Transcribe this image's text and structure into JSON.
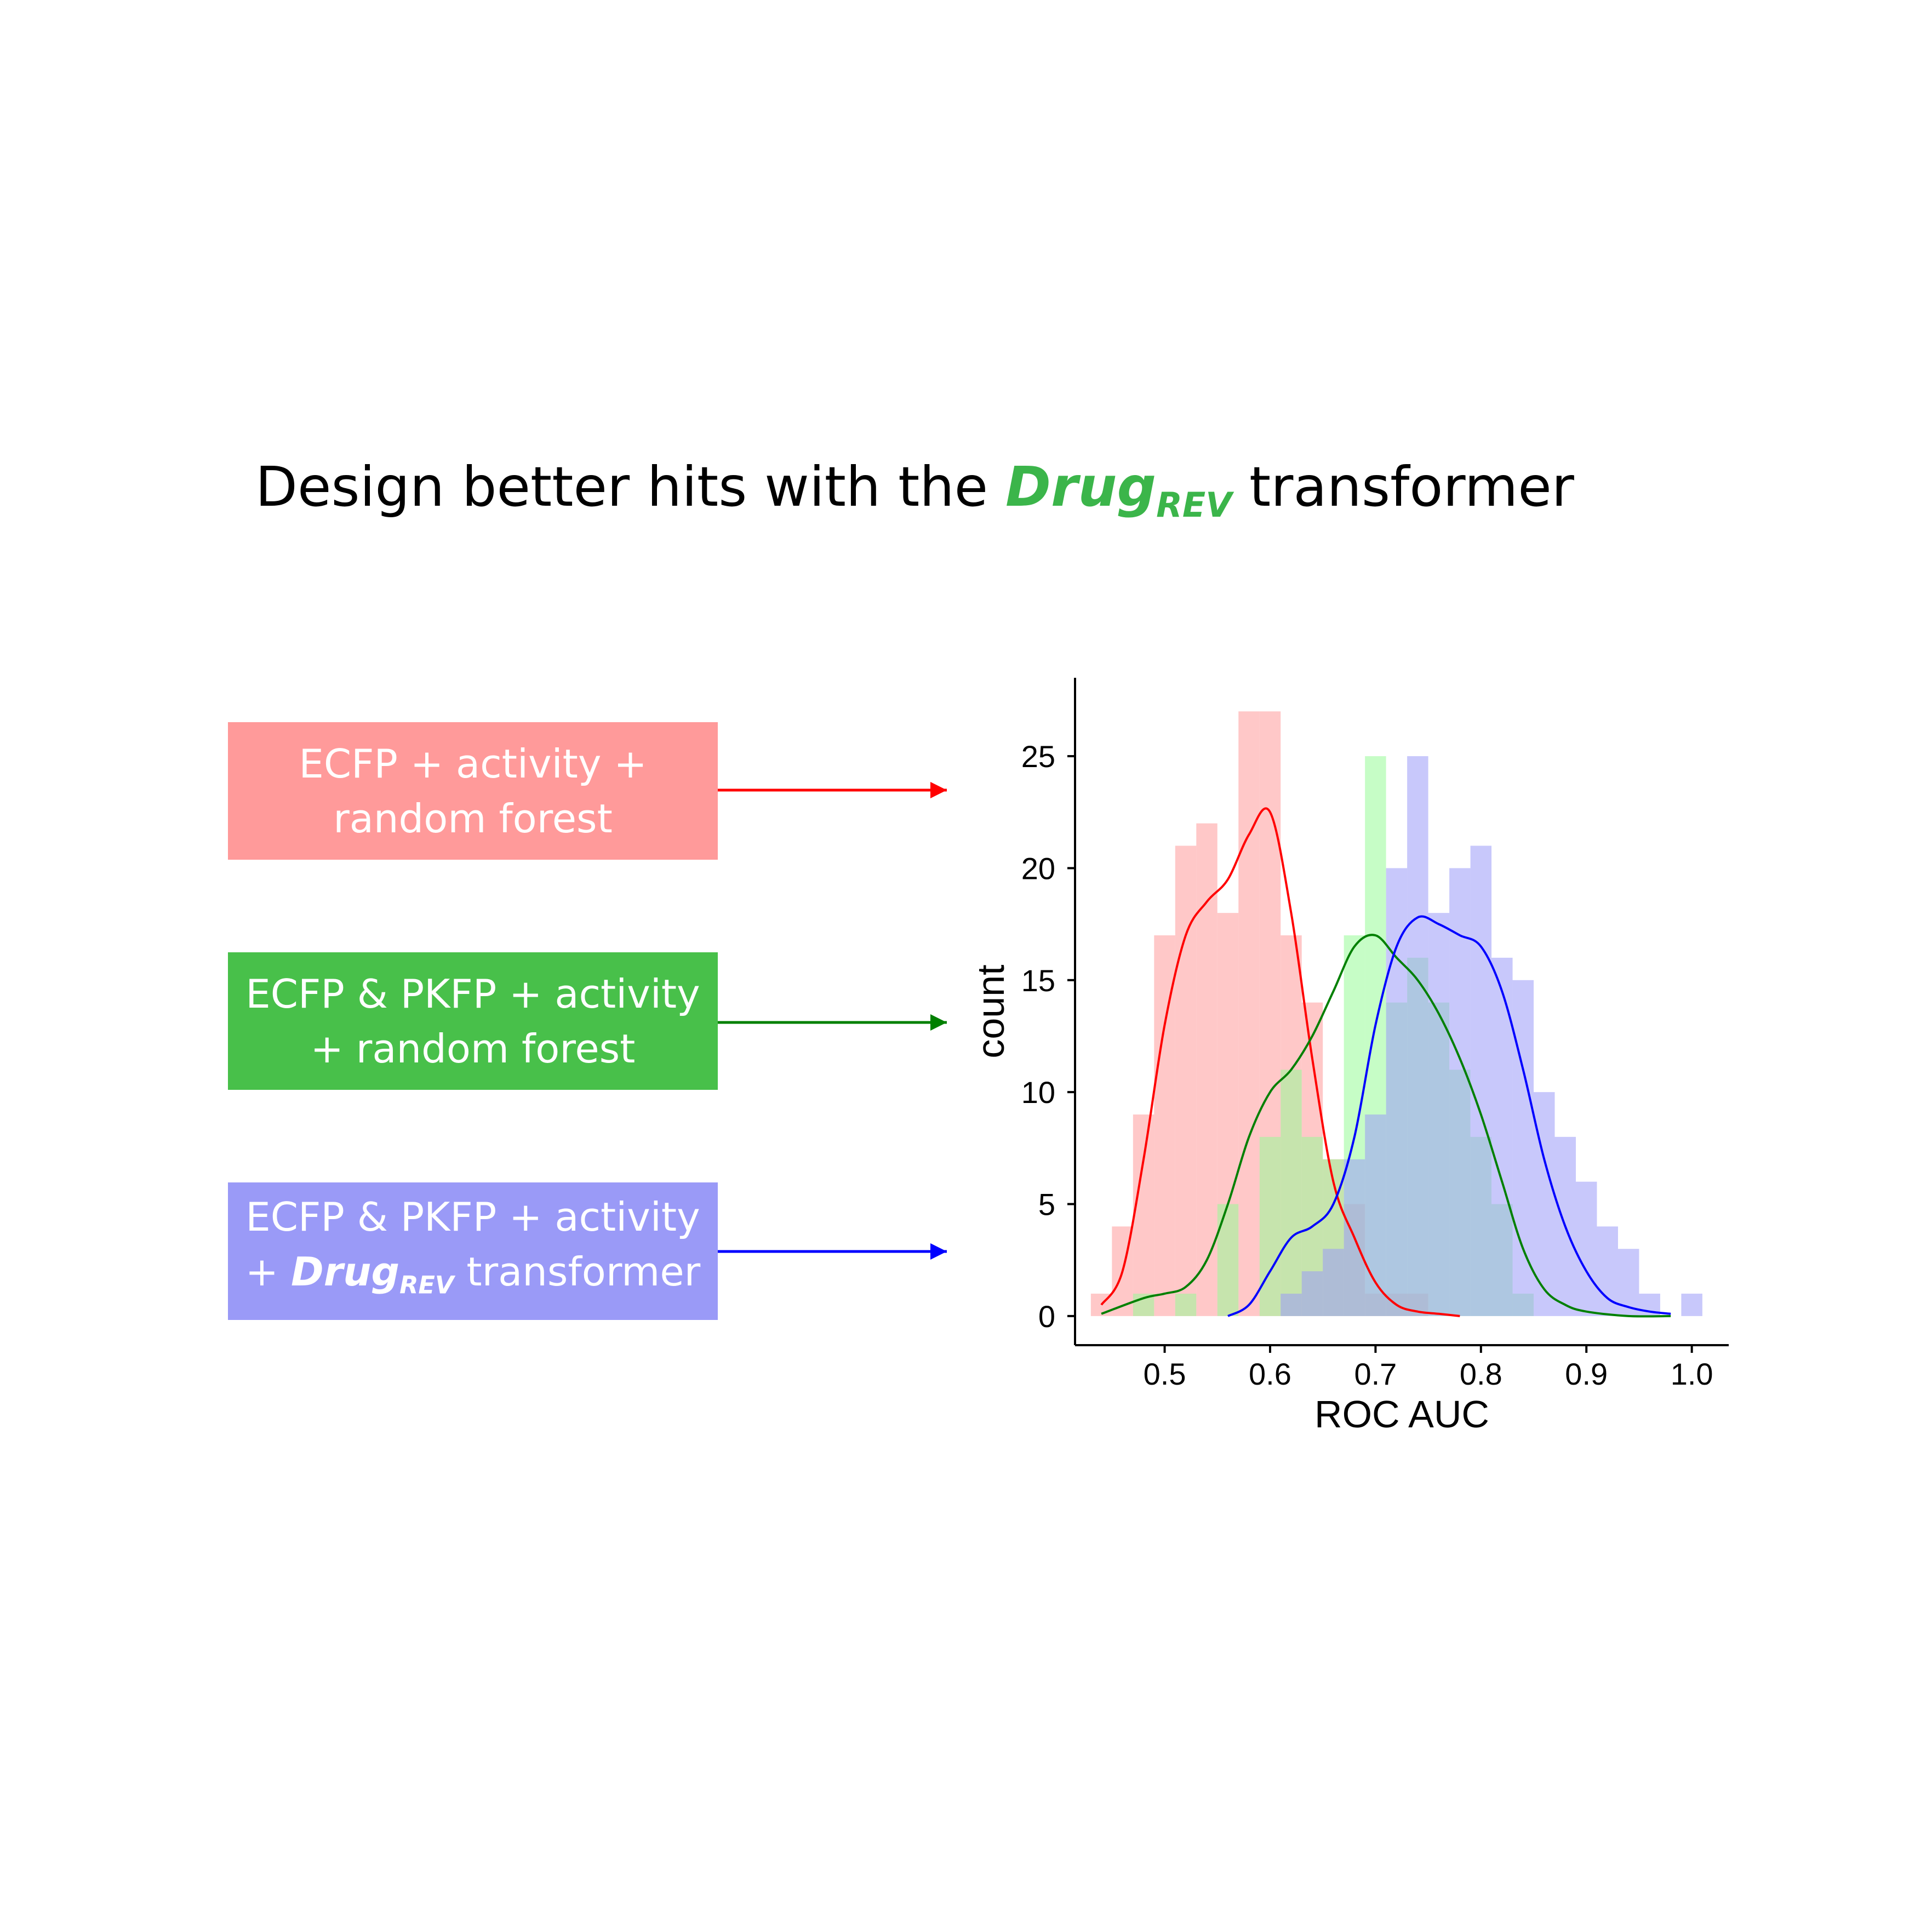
{
  "title": {
    "prefix": "Design better hits with the",
    "brand": "Drug",
    "brand_sub": "REV",
    "suffix": "transformer"
  },
  "boxes": [
    {
      "line1": "ECFP + activity +",
      "line2": "random forest",
      "color": "#ff9a9a",
      "arrow_color": "#ff0000"
    },
    {
      "line1": "ECFP & PKFP + activity",
      "line2": "+ random forest",
      "color": "#48c04a",
      "arrow_color": "#008000"
    },
    {
      "line1": "ECFP & PKFP + activity",
      "line2_prefix": "+",
      "line2_brand": "Drug",
      "line2_brand_sub": "REV",
      "line2_suffix": "transformer",
      "color": "#9a9af7",
      "arrow_color": "#0000ff"
    }
  ],
  "chart_data": {
    "type": "histogram",
    "xlabel": "ROC AUC",
    "ylabel": "count",
    "xlim": [
      0.415,
      1.035
    ],
    "ylim": [
      -1.3,
      28.5
    ],
    "xticks": [
      "0.5",
      "0.6",
      "0.7",
      "0.8",
      "0.9",
      "1.0"
    ],
    "yticks": [
      "0",
      "5",
      "10",
      "15",
      "20",
      "25"
    ],
    "bin_width": 0.02,
    "grid": false,
    "series": [
      {
        "color": "#ff9a9a",
        "line_color": "#ff0000",
        "x": [
          0.44,
          0.46,
          0.48,
          0.5,
          0.52,
          0.54,
          0.56,
          0.58,
          0.6,
          0.62,
          0.64,
          0.66,
          0.68,
          0.7,
          0.72,
          0.74
        ],
        "counts": [
          1,
          4,
          9,
          17,
          21,
          22,
          18,
          27,
          27,
          17,
          14,
          7,
          5,
          1,
          1,
          1
        ],
        "kde_x": [
          0.44,
          0.46,
          0.48,
          0.5,
          0.52,
          0.54,
          0.56,
          0.58,
          0.6,
          0.62,
          0.64,
          0.66,
          0.68,
          0.7,
          0.72,
          0.74,
          0.76,
          0.78
        ],
        "kde_y": [
          0.5,
          2,
          7,
          13,
          17,
          18.5,
          19.5,
          21.5,
          22.5,
          18,
          11.5,
          6,
          3.5,
          1.5,
          0.5,
          0.2,
          0.1,
          0
        ]
      },
      {
        "color": "#98fb98",
        "line_color": "#008000",
        "x": [
          0.48,
          0.52,
          0.56,
          0.6,
          0.62,
          0.64,
          0.66,
          0.68,
          0.7,
          0.72,
          0.74,
          0.76,
          0.78,
          0.8,
          0.82,
          0.84
        ],
        "counts": [
          1,
          1,
          5,
          8,
          11,
          8,
          7,
          17,
          25,
          14,
          16,
          14,
          11,
          8,
          5,
          1
        ],
        "kde_x": [
          0.44,
          0.48,
          0.5,
          0.52,
          0.54,
          0.56,
          0.58,
          0.6,
          0.62,
          0.64,
          0.66,
          0.68,
          0.7,
          0.72,
          0.74,
          0.76,
          0.78,
          0.8,
          0.82,
          0.84,
          0.86,
          0.88,
          0.9,
          0.94,
          0.98
        ],
        "kde_y": [
          0.1,
          0.8,
          1,
          1.3,
          2.5,
          5,
          8,
          10,
          11,
          12.5,
          14.5,
          16.5,
          17,
          16,
          15,
          13.5,
          11.5,
          9,
          6,
          3,
          1.2,
          0.5,
          0.2,
          0,
          0
        ]
      },
      {
        "color": "#9a9af7",
        "line_color": "#0000ff",
        "x": [
          0.62,
          0.64,
          0.66,
          0.68,
          0.7,
          0.72,
          0.74,
          0.76,
          0.78,
          0.8,
          0.82,
          0.84,
          0.86,
          0.88,
          0.9,
          0.92,
          0.94,
          0.96,
          0.98,
          1.0
        ],
        "counts": [
          1,
          2,
          3,
          7,
          9,
          20,
          25,
          18,
          20,
          21,
          16,
          15,
          10,
          8,
          6,
          4,
          3,
          1,
          0,
          1
        ],
        "kde_x": [
          0.56,
          0.58,
          0.6,
          0.62,
          0.64,
          0.66,
          0.68,
          0.7,
          0.72,
          0.74,
          0.76,
          0.78,
          0.8,
          0.82,
          0.84,
          0.86,
          0.88,
          0.9,
          0.92,
          0.94,
          0.96,
          0.98
        ],
        "kde_y": [
          0,
          0.5,
          2,
          3.5,
          4,
          5,
          8,
          13,
          16.5,
          17.8,
          17.5,
          17,
          16.5,
          14.5,
          11,
          7,
          4,
          2,
          0.8,
          0.4,
          0.2,
          0.1
        ]
      }
    ]
  }
}
